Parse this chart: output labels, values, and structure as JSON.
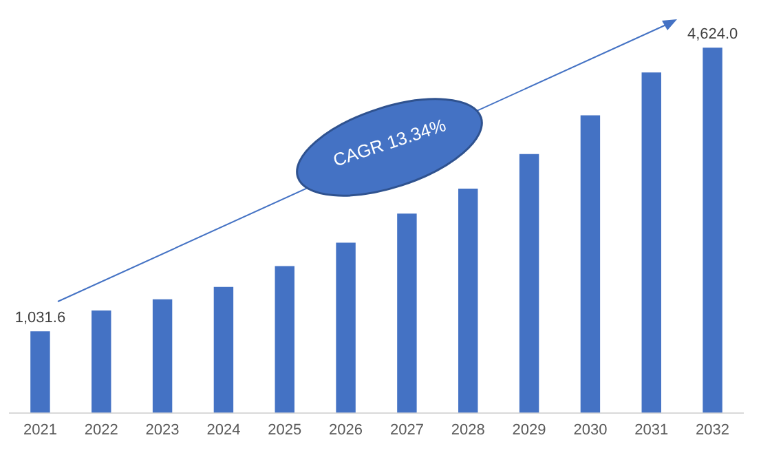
{
  "chart_data": {
    "type": "bar",
    "categories": [
      "2021",
      "2022",
      "2023",
      "2024",
      "2025",
      "2026",
      "2027",
      "2028",
      "2029",
      "2030",
      "2031",
      "2032"
    ],
    "values": [
      1031.6,
      1296,
      1437,
      1594,
      1857,
      2155,
      2523,
      2838,
      3276,
      3767,
      4310,
      4624.0
    ],
    "value_labels": [
      "1,031.6",
      null,
      null,
      null,
      null,
      null,
      null,
      null,
      null,
      null,
      null,
      "4,624.0"
    ],
    "color": "#4472c4",
    "tick_labels": "x",
    "grid": false,
    "legend": false,
    "annotations": [
      "CAGR 13.34%"
    ]
  }
}
